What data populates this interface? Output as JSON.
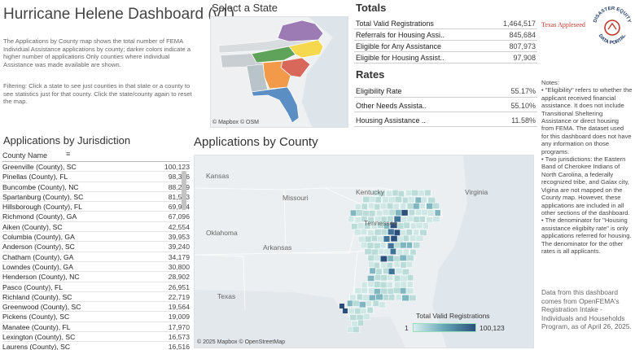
{
  "header": {
    "title": "Hurricane Helene Dashboard (v1)",
    "description": "The Applications by County map shows the total number of FEMA Individual Assistance applications by county; darker colors indicate a higher number of applications Only counties where individual Assistance was made available are shown.",
    "filtering": "Filtering: Click a state to see just counties in that state or a county to see statistics just for that county. Click the state/county again to reset the map."
  },
  "state_map": {
    "title": "Select a State",
    "credit": "© Mapbox © OSM"
  },
  "totals": {
    "title": "Totals",
    "rows": [
      {
        "label": "Total Valid Registrations",
        "value": "1,464,517"
      },
      {
        "label": "Referrals for Housing Assi..",
        "value": "845,684"
      },
      {
        "label": "Eligible for Any Assistance",
        "value": "807,973"
      },
      {
        "label": "Eligible for Housing Assist..",
        "value": "97,908"
      }
    ]
  },
  "rates": {
    "title": "Rates",
    "rows": [
      {
        "label": "Eligibility Rate",
        "value": "55.17%"
      },
      {
        "label": "Other Needs Assista..",
        "value": "55.10%"
      },
      {
        "label": "Housing Assistance ..",
        "value": "11.58%"
      }
    ]
  },
  "logos": {
    "texas_appleseed": "Texas Appleseed",
    "portal_line1": "DISASTER EQUITY",
    "portal_line2": "DATA PORTAL"
  },
  "notes": {
    "title": "Notes:",
    "items": [
      "• \"Eligibility\" refers to whether the applicant received financial assistance. It does not include Transitional Sheltering Assistance or direct housing from FEMA. The dataset used for this dashboard does not have any information on those programs.",
      "• Two jurisdictions: the Eastern Band of Cherokee Indians of North Carolina, a federally recognized tribe, and Galax city, Vigina are not mapped on the County map. However, these applications are included in all other sections of the dashboard.",
      "• The denominator for \"Housing assistance eligibilty rate\" is only applications referred for housing. The denominator for the other rates is all applicants."
    ],
    "data_source": "Data from this dashboard comes from OpenFEMA's Registration Intake - Individuals and Households Program, as of April 26, 2025."
  },
  "jurisdictions": {
    "title": "Applications by Jurisdiction",
    "column_header": "County Name",
    "rows": [
      {
        "name": "Greenville (County), SC",
        "value": "100,123"
      },
      {
        "name": "Pinellas (County), FL",
        "value": "98,346"
      },
      {
        "name": "Buncombe (County), NC",
        "value": "88,289"
      },
      {
        "name": "Spartanburg (County), SC",
        "value": "81,523"
      },
      {
        "name": "Hillsborough (County), FL",
        "value": "69,914"
      },
      {
        "name": "Richmond (County), GA",
        "value": "67,096"
      },
      {
        "name": "Aiken (County), SC",
        "value": "42,554"
      },
      {
        "name": "Columbia (County), GA",
        "value": "39,953"
      },
      {
        "name": "Anderson (County), SC",
        "value": "39,240"
      },
      {
        "name": "Chatham (County), GA",
        "value": "34,179"
      },
      {
        "name": "Lowndes (County), GA",
        "value": "30,800"
      },
      {
        "name": "Henderson (County), NC",
        "value": "28,902"
      },
      {
        "name": "Pasco (County), FL",
        "value": "26,951"
      },
      {
        "name": "Richland (County), SC",
        "value": "22,719"
      },
      {
        "name": "Greenwood (County), SC",
        "value": "19,564"
      },
      {
        "name": "Pickens (County), SC",
        "value": "19,009"
      },
      {
        "name": "Manatee (County), FL",
        "value": "17,970"
      },
      {
        "name": "Lexington (County), SC",
        "value": "16,573"
      },
      {
        "name": "Laurens (County), SC",
        "value": "16,516"
      }
    ]
  },
  "county_map": {
    "title": "Applications by County",
    "credit": "© 2025 Mapbox © OpenStreetMap",
    "labels": [
      "Kansas",
      "Missouri",
      "Kentucky",
      "Virginia",
      "Tennessee",
      "Oklahoma",
      "Arkansas",
      "Texas"
    ],
    "legend_title": "Total Valid Registrations",
    "legend_min": "1",
    "legend_max": "100,123",
    "colors": {
      "low": "#d9eef0",
      "mid": "#64a6b5",
      "high": "#2a4f7c"
    }
  },
  "state_colors": {
    "va": "#9c7bb5",
    "nc_east": "#f6d84f",
    "nc_west": "#5fa35a",
    "sc": "#d8685a",
    "ga": "#f2994a",
    "fl": "#5b8fc4",
    "tn": "#9aa3ab",
    "al": "#a6b3bb"
  }
}
